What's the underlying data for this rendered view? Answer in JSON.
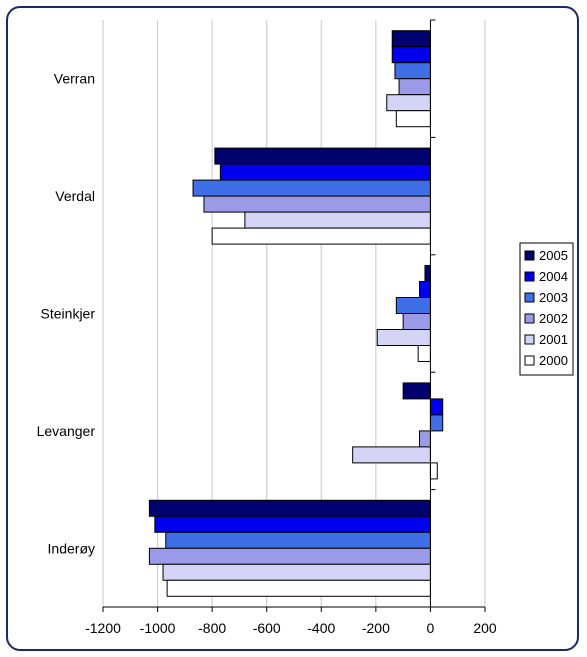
{
  "chart_data": {
    "type": "bar",
    "orientation": "horizontal",
    "title": "",
    "xlabel": "",
    "ylabel": "",
    "categories": [
      "Verran",
      "Verdal",
      "Steinkjer",
      "Levanger",
      "Inderøy"
    ],
    "xlim": [
      -1200,
      200
    ],
    "xticks": [
      "-1200",
      "-1000",
      "-800",
      "-600",
      "-400",
      "-200",
      "0",
      "200"
    ],
    "grid": "vertical",
    "legend": "right",
    "series": [
      {
        "name": "2005",
        "color": "#00006e",
        "values": [
          -140,
          -790,
          -20,
          -100,
          -1030
        ]
      },
      {
        "name": "2004",
        "color": "#0000ee",
        "values": [
          -140,
          -770,
          -40,
          45,
          -1010
        ]
      },
      {
        "name": "2003",
        "color": "#3f6fe6",
        "values": [
          -130,
          -870,
          -125,
          45,
          -970
        ]
      },
      {
        "name": "2002",
        "color": "#9a9ae8",
        "values": [
          -115,
          -830,
          -100,
          -40,
          -1030
        ]
      },
      {
        "name": "2001",
        "color": "#d3d4f6",
        "values": [
          -160,
          -680,
          -195,
          -285,
          -980
        ]
      },
      {
        "name": "2000",
        "color": "#ffffff",
        "values": [
          -125,
          -800,
          -45,
          25,
          -965
        ]
      }
    ]
  }
}
